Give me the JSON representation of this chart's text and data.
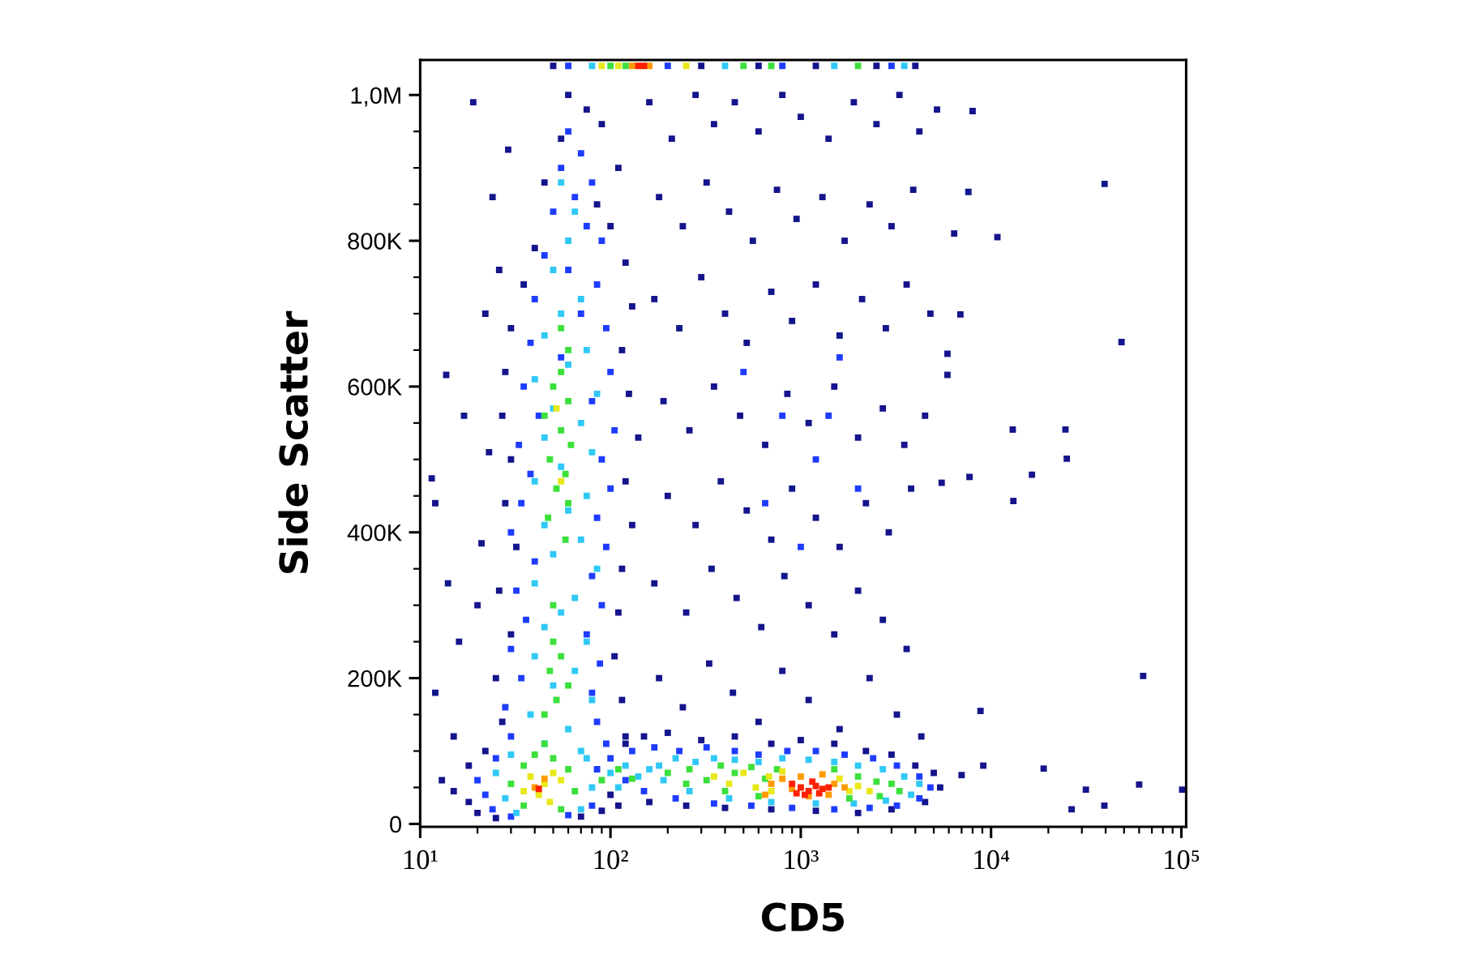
{
  "chart_data": {
    "type": "scatter",
    "xlabel": "CD5",
    "ylabel": "Side Scatter",
    "log": "x",
    "marker": "square",
    "xlim": [
      10,
      106000
    ],
    "ylim": [
      -4000,
      1048000
    ],
    "xticks": [
      {
        "value": 10,
        "label": "10¹"
      },
      {
        "value": 20,
        "label": null
      },
      {
        "value": 30,
        "label": null
      },
      {
        "value": 40,
        "label": null
      },
      {
        "value": 50,
        "label": null
      },
      {
        "value": 60,
        "label": null
      },
      {
        "value": 70,
        "label": null
      },
      {
        "value": 80,
        "label": null
      },
      {
        "value": 90,
        "label": null
      },
      {
        "value": 100,
        "label": "10²"
      },
      {
        "value": 200,
        "label": null
      },
      {
        "value": 300,
        "label": null
      },
      {
        "value": 400,
        "label": null
      },
      {
        "value": 500,
        "label": null
      },
      {
        "value": 600,
        "label": null
      },
      {
        "value": 700,
        "label": null
      },
      {
        "value": 800,
        "label": null
      },
      {
        "value": 900,
        "label": null
      },
      {
        "value": 1000,
        "label": "10³"
      },
      {
        "value": 2000,
        "label": null
      },
      {
        "value": 3000,
        "label": null
      },
      {
        "value": 4000,
        "label": null
      },
      {
        "value": 5000,
        "label": null
      },
      {
        "value": 6000,
        "label": null
      },
      {
        "value": 7000,
        "label": null
      },
      {
        "value": 8000,
        "label": null
      },
      {
        "value": 9000,
        "label": null
      },
      {
        "value": 10000,
        "label": "10⁴"
      },
      {
        "value": 20000,
        "label": null
      },
      {
        "value": 30000,
        "label": null
      },
      {
        "value": 40000,
        "label": null
      },
      {
        "value": 50000,
        "label": null
      },
      {
        "value": 60000,
        "label": null
      },
      {
        "value": 70000,
        "label": null
      },
      {
        "value": 80000,
        "label": null
      },
      {
        "value": 90000,
        "label": null
      },
      {
        "value": 100000,
        "label": "10⁵"
      }
    ],
    "yticks": [
      0,
      {
        "value": 50000,
        "label": null
      },
      {
        "value": 100000,
        "label": null
      },
      {
        "value": 150000,
        "label": null
      },
      {
        "value": 200000,
        "label": "200K"
      },
      {
        "value": 250000,
        "label": null
      },
      {
        "value": 300000,
        "label": null
      },
      {
        "value": 350000,
        "label": null
      },
      {
        "value": 400000,
        "label": "400K"
      },
      {
        "value": 450000,
        "label": null
      },
      {
        "value": 500000,
        "label": null
      },
      {
        "value": 550000,
        "label": null
      },
      {
        "value": 600000,
        "label": "600K"
      },
      {
        "value": 650000,
        "label": null
      },
      {
        "value": 700000,
        "label": null
      },
      {
        "value": 750000,
        "label": null
      },
      {
        "value": 800000,
        "label": "800K"
      },
      {
        "value": 850000,
        "label": null
      },
      {
        "value": 900000,
        "label": null
      },
      {
        "value": 950000,
        "label": null
      },
      {
        "value": 1000000,
        "label": "1,0M"
      }
    ],
    "series": [
      {
        "color": "#14148c",
        "x": [
          19,
          29,
          13.7,
          11.5,
          12,
          14,
          16,
          12,
          15,
          18,
          13,
          22,
          17,
          21,
          24,
          26,
          20,
          23,
          60,
          75,
          90,
          55,
          110,
          45,
          85,
          100,
          40,
          120,
          35,
          130,
          30,
          115,
          28,
          125,
          27,
          140,
          30,
          120,
          28,
          130,
          32,
          115,
          26,
          110,
          30,
          105,
          25,
          115,
          27,
          120,
          22,
          160,
          210,
          280,
          350,
          450,
          600,
          800,
          1000,
          1400,
          1900,
          2500,
          3300,
          4200,
          5200,
          180,
          240,
          320,
          420,
          560,
          750,
          950,
          1300,
          1700,
          2300,
          3000,
          3900,
          170,
          230,
          300,
          400,
          520,
          700,
          900,
          1200,
          1600,
          2100,
          2800,
          3600,
          4800,
          190,
          260,
          350,
          480,
          650,
          850,
          1100,
          1500,
          2000,
          2700,
          3500,
          4500,
          200,
          280,
          380,
          520,
          700,
          900,
          1200,
          1600,
          2200,
          2900,
          3800,
          170,
          250,
          340,
          460,
          620,
          820,
          1100,
          1500,
          2000,
          2700,
          3600,
          180,
          240,
          330,
          440,
          600,
          800,
          1100,
          1600,
          2300,
          3200,
          4300,
          8000,
          7600,
          10800,
          6400,
          39500,
          6900,
          48500,
          5900,
          5900,
          13000,
          24600,
          25000,
          13100,
          16400,
          7700,
          5500,
          63000,
          8800,
          7000,
          9100,
          18900,
          31500,
          26500,
          39400,
          60000,
          101000,
          120,
          150,
          200,
          300,
          450,
          700,
          1000,
          1500,
          2200,
          3000,
          4000,
          5000,
          5400,
          4500,
          3000,
          2000,
          1200,
          700,
          400,
          250,
          160,
          110,
          18,
          15,
          20,
          25,
          70,
          90,
          100,
          50,
          300,
          600,
          1200,
          2500,
          4000
        ],
        "values": [
          990000,
          925000,
          616000,
          474000,
          440000,
          330000,
          250000,
          180000,
          120000,
          80000,
          60000,
          700000,
          560000,
          385000,
          860000,
          760000,
          300000,
          510000,
          1000000,
          980000,
          960000,
          940000,
          900000,
          880000,
          850000,
          820000,
          790000,
          770000,
          740000,
          710000,
          680000,
          650000,
          620000,
          590000,
          560000,
          530000,
          500000,
          470000,
          440000,
          410000,
          380000,
          350000,
          320000,
          290000,
          260000,
          230000,
          200000,
          170000,
          140000,
          120000,
          100000,
          990000,
          940000,
          1000000,
          960000,
          990000,
          950000,
          1000000,
          970000,
          940000,
          990000,
          960000,
          1000000,
          950000,
          980000,
          860000,
          820000,
          880000,
          840000,
          800000,
          870000,
          830000,
          860000,
          800000,
          850000,
          820000,
          870000,
          720000,
          680000,
          750000,
          700000,
          660000,
          730000,
          690000,
          740000,
          670000,
          720000,
          680000,
          740000,
          700000,
          580000,
          540000,
          600000,
          560000,
          520000,
          590000,
          550000,
          600000,
          530000,
          570000,
          520000,
          560000,
          450000,
          410000,
          470000,
          430000,
          390000,
          460000,
          420000,
          380000,
          440000,
          400000,
          460000,
          330000,
          290000,
          350000,
          310000,
          270000,
          340000,
          300000,
          260000,
          320000,
          280000,
          240000,
          200000,
          160000,
          220000,
          180000,
          140000,
          210000,
          170000,
          130000,
          200000,
          150000,
          120000,
          978000,
          867000,
          805000,
          810000,
          878000,
          699000,
          661000,
          645000,
          616000,
          541000,
          541000,
          501000,
          443000,
          479000,
          476000,
          468000,
          203000,
          155000,
          67000,
          80000,
          76000,
          47000,
          20000,
          25000,
          54000,
          47000,
          110000,
          120000,
          125000,
          115000,
          120000,
          110000,
          115000,
          110000,
          100000,
          95000,
          80000,
          70000,
          50000,
          30000,
          20000,
          15000,
          18000,
          20000,
          22000,
          25000,
          30000,
          25000,
          30000,
          45000,
          15000,
          8000,
          10000,
          18000,
          40000,
          1040000,
          1040000,
          1040000,
          1040000,
          1040000,
          1040000
        ]
      },
      {
        "color": "#1e3cff",
        "x": [
          60,
          70,
          55,
          80,
          65,
          50,
          75,
          90,
          45,
          60,
          85,
          40,
          70,
          95,
          38,
          55,
          100,
          35,
          80,
          42,
          105,
          33,
          90,
          38,
          100,
          34,
          85,
          30,
          95,
          40,
          80,
          32,
          90,
          36,
          75,
          30,
          88,
          34,
          80,
          28,
          85,
          30,
          95,
          500,
          800,
          1200,
          1600,
          2000,
          650,
          1000,
          1400,
          100,
          130,
          170,
          230,
          320,
          450,
          600,
          850,
          1200,
          1700,
          2400,
          3200,
          4200,
          4800,
          4200,
          3200,
          2300,
          1500,
          900,
          550,
          350,
          220,
          150,
          120,
          20,
          22,
          24,
          30,
          60,
          80,
          25,
          85,
          60,
          200,
          800,
          3000
        ],
        "values": [
          950000,
          920000,
          900000,
          880000,
          860000,
          840000,
          820000,
          800000,
          780000,
          760000,
          740000,
          720000,
          700000,
          680000,
          660000,
          640000,
          620000,
          600000,
          580000,
          560000,
          540000,
          520000,
          500000,
          480000,
          460000,
          440000,
          420000,
          400000,
          380000,
          360000,
          340000,
          320000,
          300000,
          280000,
          260000,
          240000,
          220000,
          200000,
          180000,
          160000,
          140000,
          120000,
          110000,
          620000,
          560000,
          500000,
          640000,
          460000,
          440000,
          380000,
          560000,
          90000,
          100000,
          105000,
          100000,
          105000,
          100000,
          95000,
          100000,
          100000,
          95000,
          90000,
          80000,
          65000,
          50000,
          35000,
          25000,
          22000,
          20000,
          22000,
          25000,
          28000,
          35000,
          45000,
          60000,
          60000,
          40000,
          20000,
          10000,
          12000,
          25000,
          90000,
          75000,
          1040000,
          1040000,
          1040000,
          1040000
        ]
      },
      {
        "color": "#30c8f5",
        "x": [
          55,
          65,
          60,
          50,
          70,
          55,
          45,
          75,
          60,
          40,
          85,
          50,
          70,
          45,
          80,
          55,
          40,
          75,
          60,
          45,
          70,
          50,
          85,
          40,
          65,
          55,
          45,
          75,
          40,
          65,
          50,
          80,
          38,
          60,
          45,
          70,
          25,
          28,
          32,
          70,
          80,
          75,
          30,
          100,
          120,
          140,
          110,
          160,
          180,
          220,
          280,
          350,
          450,
          600,
          800,
          1100,
          1500,
          2000,
          2700,
          3500,
          4200,
          3800,
          2800,
          1900,
          1200,
          700,
          420,
          260,
          190,
          80,
          400,
          1500,
          3500
        ],
        "values": [
          880000,
          840000,
          800000,
          760000,
          720000,
          700000,
          670000,
          650000,
          630000,
          610000,
          590000,
          570000,
          550000,
          530000,
          510000,
          490000,
          470000,
          450000,
          430000,
          410000,
          390000,
          370000,
          350000,
          330000,
          310000,
          290000,
          270000,
          250000,
          230000,
          210000,
          190000,
          170000,
          150000,
          130000,
          110000,
          100000,
          70000,
          35000,
          15000,
          20000,
          50000,
          90000,
          95000,
          70000,
          80000,
          65000,
          50000,
          75000,
          80000,
          90000,
          85000,
          90000,
          88000,
          85000,
          90000,
          88000,
          85000,
          80000,
          75000,
          65000,
          55000,
          40000,
          32000,
          28000,
          28000,
          30000,
          35000,
          45000,
          60000,
          1040000,
          1040000,
          1040000,
          1040000
        ]
      },
      {
        "color": "#3ce03c",
        "x": [
          55,
          50,
          60,
          45,
          55,
          62,
          48,
          58,
          52,
          60,
          47,
          55,
          60,
          50,
          55,
          48,
          60,
          52,
          45,
          58,
          50,
          35,
          40,
          50,
          60,
          30,
          65,
          35,
          55,
          45,
          90,
          130,
          110,
          200,
          260,
          320,
          380,
          450,
          550,
          650,
          750,
          1500,
          2000,
          2500,
          3000,
          3300,
          2600,
          1800,
          600,
          400,
          250,
          100,
          120,
          500,
          700,
          2000
        ],
        "values": [
          620000,
          600000,
          580000,
          560000,
          540000,
          520000,
          500000,
          480000,
          460000,
          440000,
          420000,
          680000,
          650000,
          250000,
          230000,
          210000,
          190000,
          170000,
          150000,
          390000,
          300000,
          80000,
          95000,
          90000,
          75000,
          55000,
          45000,
          25000,
          20000,
          110000,
          60000,
          62000,
          75000,
          70000,
          75000,
          60000,
          80000,
          70000,
          78000,
          62000,
          75000,
          75000,
          65000,
          58000,
          55000,
          45000,
          38000,
          35000,
          38000,
          45000,
          55000,
          1040000,
          1040000,
          1040000,
          1040000,
          1040000
        ]
      },
      {
        "color": "#e8e81a",
        "x": [
          38,
          45,
          42,
          50,
          35,
          48,
          55,
          55,
          52,
          350,
          420,
          500,
          580,
          680,
          800,
          1600,
          2000,
          2300,
          1800,
          700,
          110,
          90,
          250
        ],
        "values": [
          65000,
          55000,
          40000,
          70000,
          45000,
          30000,
          60000,
          470000,
          570000,
          65000,
          55000,
          70000,
          50000,
          65000,
          72000,
          62000,
          52000,
          45000,
          45000,
          45000,
          1040000,
          1040000,
          1040000
        ]
      },
      {
        "color": "#ff9a00",
        "x": [
          700,
          800,
          900,
          1000,
          1300,
          1500,
          1700,
          1100,
          650,
          1400,
          40,
          45,
          130,
          160
        ],
        "values": [
          55000,
          62000,
          48000,
          65000,
          68000,
          55000,
          50000,
          38000,
          40000,
          40000,
          50000,
          62000,
          1040000,
          1040000
        ]
      },
      {
        "color": "#ff2000",
        "x": [
          900,
          1000,
          1100,
          1200,
          1300,
          1150,
          1050,
          1400,
          950,
          1250,
          42,
          140,
          150
        ],
        "values": [
          55000,
          50000,
          45000,
          52000,
          48000,
          58000,
          40000,
          50000,
          42000,
          42000,
          48000,
          1040000,
          1040000
        ]
      }
    ]
  }
}
